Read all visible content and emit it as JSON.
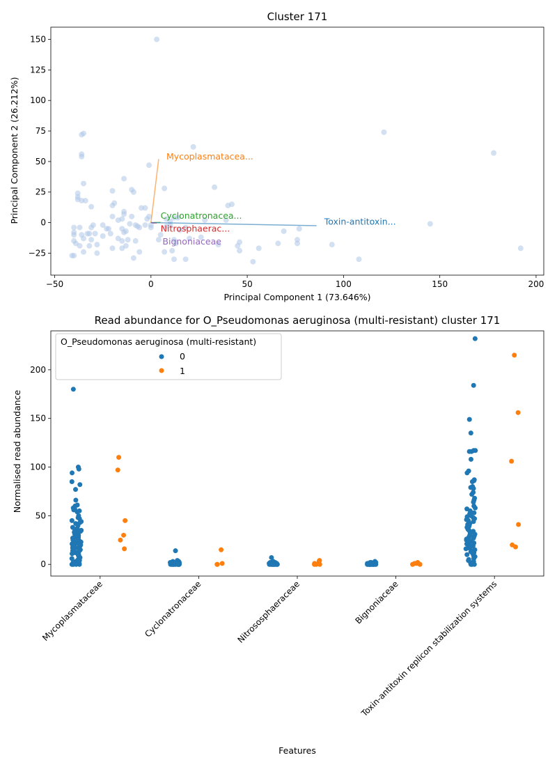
{
  "colors": {
    "blue": "#1f77b4",
    "orange": "#ff7f0e",
    "green": "#2ca02c",
    "red": "#d62728",
    "purple": "#9467bd",
    "pca_point": "#aec7e8"
  },
  "chart_data": [
    {
      "type": "scatter",
      "title": "Cluster 171",
      "xlabel": "Principal Component 1 (73.646%)",
      "ylabel": "Principal Component 2 (26.212%)",
      "xlim": [
        -52,
        204
      ],
      "ylim": [
        -43,
        160
      ],
      "xticks": [
        -50,
        0,
        50,
        100,
        150,
        200
      ],
      "yticks": [
        -25,
        0,
        25,
        50,
        75,
        100,
        125,
        150
      ],
      "grid": false,
      "points": [
        [
          3,
          150
        ],
        [
          121,
          74
        ],
        [
          178,
          57
        ],
        [
          22,
          62
        ],
        [
          -36,
          72
        ],
        [
          -35,
          73
        ],
        [
          -36,
          56
        ],
        [
          -36,
          54
        ],
        [
          -1,
          47
        ],
        [
          7,
          28
        ],
        [
          33,
          29
        ],
        [
          -35,
          32
        ],
        [
          -38,
          24
        ],
        [
          -38,
          21
        ],
        [
          -38,
          19
        ],
        [
          -36,
          18
        ],
        [
          -34,
          18
        ],
        [
          -20,
          26
        ],
        [
          -10,
          27
        ],
        [
          -9,
          25
        ],
        [
          -14,
          36
        ],
        [
          -19,
          16
        ],
        [
          -20,
          14
        ],
        [
          -31,
          13
        ],
        [
          -14,
          9
        ],
        [
          -14,
          7
        ],
        [
          -20,
          5
        ],
        [
          -10,
          5
        ],
        [
          -15,
          3
        ],
        [
          -17,
          2
        ],
        [
          -3,
          12
        ],
        [
          -5,
          12
        ],
        [
          -1,
          5
        ],
        [
          -2,
          3
        ],
        [
          8,
          3
        ],
        [
          10,
          1
        ],
        [
          12,
          4
        ],
        [
          14,
          4
        ],
        [
          40,
          14
        ],
        [
          42,
          15
        ],
        [
          39,
          2
        ],
        [
          28,
          2
        ],
        [
          -40,
          -4
        ],
        [
          -37,
          -4
        ],
        [
          -25,
          -2
        ],
        [
          -22,
          -5
        ],
        [
          -23,
          -5
        ],
        [
          -30,
          -2
        ],
        [
          -31,
          -4
        ],
        [
          -15,
          -5
        ],
        [
          -14,
          -8
        ],
        [
          -13,
          -7
        ],
        [
          -8,
          -2
        ],
        [
          -7,
          -3
        ],
        [
          -6,
          -4
        ],
        [
          0,
          -2
        ],
        [
          0,
          -4
        ],
        [
          5,
          -10
        ],
        [
          8,
          -3
        ],
        [
          10,
          -2
        ],
        [
          12,
          -14
        ],
        [
          13,
          -17
        ],
        [
          20,
          -13
        ],
        [
          -40,
          -8
        ],
        [
          -40,
          -10
        ],
        [
          -40,
          -15
        ],
        [
          -39,
          -17
        ],
        [
          -36,
          -10
        ],
        [
          -35,
          -13
        ],
        [
          -33,
          -9
        ],
        [
          -32,
          -9
        ],
        [
          -29,
          -9
        ],
        [
          -25,
          -11
        ],
        [
          -21,
          -9
        ],
        [
          -17,
          -13
        ],
        [
          -15,
          -15
        ],
        [
          -12,
          -14
        ],
        [
          -8,
          -15
        ],
        [
          -13,
          -19
        ],
        [
          -15,
          -21
        ],
        [
          -20,
          -21
        ],
        [
          -31,
          -14
        ],
        [
          -32,
          -19
        ],
        [
          -37,
          -19
        ],
        [
          -28,
          -18
        ],
        [
          -28,
          -25
        ],
        [
          -35,
          -24
        ],
        [
          -6,
          -24
        ],
        [
          -9,
          -29
        ],
        [
          7,
          -24
        ],
        [
          11,
          -23
        ],
        [
          12,
          -30
        ],
        [
          18,
          -30
        ],
        [
          -41,
          -27
        ],
        [
          -40,
          -27
        ],
        [
          35,
          -18
        ],
        [
          45,
          -19
        ],
        [
          46,
          -16
        ],
        [
          46,
          -23
        ],
        [
          53,
          -32
        ],
        [
          56,
          -21
        ],
        [
          66,
          -17
        ],
        [
          69,
          -7
        ],
        [
          77,
          -5
        ],
        [
          76,
          -14
        ],
        [
          76,
          -17
        ],
        [
          94,
          -18
        ],
        [
          108,
          -30
        ],
        [
          145,
          -1
        ],
        [
          192,
          -21
        ],
        [
          4,
          -14
        ],
        [
          26,
          -12
        ],
        [
          15,
          -6
        ],
        [
          18,
          -4
        ],
        [
          -3,
          -2
        ],
        [
          -11,
          -1
        ]
      ],
      "loadings": [
        {
          "label": "Mycoplasmatacea...",
          "dx": 4,
          "dy": 52,
          "label_x": 8,
          "label_y": 54,
          "color": "#ff7f0e"
        },
        {
          "label": "Cyclonatronacea...",
          "dx": 5,
          "dy": 0.3,
          "label_x": 5,
          "label_y": 5.5,
          "color": "#2ca02c"
        },
        {
          "label": "Nitrosphaerac...",
          "dx": 3,
          "dy": -0.4,
          "label_x": 5,
          "label_y": -5,
          "color": "#d62728"
        },
        {
          "label": "Toxin-antitoxin...",
          "dx": 86,
          "dy": -2.5,
          "label_x": 90,
          "label_y": 0.5,
          "color": "#1f77b4"
        },
        {
          "label": "Bignoniaceae",
          "dx": 2,
          "dy": -0.6,
          "label_x": 6,
          "label_y": -15.5,
          "color": "#9467bd"
        }
      ]
    },
    {
      "type": "strip",
      "title": "Read abundance for O_Pseudomonas aeruginosa (multi-resistant) cluster 171",
      "xlabel": "Features",
      "ylabel": "Normalised read abundance",
      "ylim": [
        -12,
        240
      ],
      "yticks": [
        0,
        50,
        100,
        150,
        200
      ],
      "grid": false,
      "legend": {
        "title": "O_Pseudomonas aeruginosa (multi-resistant)",
        "placement": "upper-left",
        "entries": [
          {
            "label": "0",
            "color": "#1f77b4"
          },
          {
            "label": "1",
            "color": "#ff7f0e"
          }
        ]
      },
      "categories": [
        "Mycoplasmataceae",
        "Cyclonatronaceae",
        "Nitrososphaeraceae",
        "Bignoniaceae",
        "Toxin-antitoxin replicon stabilization systems"
      ],
      "series": [
        {
          "name": "0",
          "values": [
            [
              180,
              100,
              98,
              94,
              85,
              82,
              77,
              66,
              61,
              60,
              58,
              57,
              56,
              55,
              54,
              50,
              48,
              47,
              45,
              44,
              43,
              42,
              40,
              38,
              37,
              36,
              35,
              35,
              34,
              34,
              33,
              33,
              32,
              32,
              31,
              31,
              30,
              30,
              29,
              29,
              28,
              28,
              27,
              27,
              26,
              26,
              25,
              25,
              24,
              24,
              23,
              23,
              22,
              22,
              21,
              21,
              20,
              20,
              19,
              19,
              18,
              18,
              17,
              17,
              16,
              16,
              15,
              15,
              14,
              14,
              13,
              13,
              12,
              12,
              11,
              10,
              10,
              9,
              8,
              7,
              6,
              5,
              5,
              4,
              3,
              2,
              2,
              1,
              1,
              0,
              0,
              0,
              0,
              0
            ],
            [
              14,
              4,
              3,
              3,
              2,
              2,
              2,
              1,
              1,
              1,
              1,
              1,
              1,
              1,
              1,
              0,
              0,
              0,
              0,
              0,
              0,
              0,
              0,
              0,
              0,
              0,
              0,
              0,
              0,
              0
            ],
            [
              7,
              3,
              2,
              2,
              2,
              2,
              1,
              1,
              1,
              1,
              1,
              1,
              1,
              1,
              0,
              0,
              0,
              0,
              0,
              0,
              0,
              0,
              0,
              0,
              0,
              0,
              0,
              0,
              0,
              0
            ],
            [
              3,
              2,
              2,
              2,
              1,
              1,
              1,
              1,
              1,
              1,
              1,
              0,
              0,
              0,
              0,
              0,
              0,
              0,
              0,
              0,
              0,
              0,
              0,
              0,
              0,
              0,
              0,
              0,
              0,
              0
            ],
            [
              232,
              184,
              149,
              135,
              117,
              117,
              116,
              116,
              108,
              96,
              94,
              87,
              86,
              85,
              80,
              79,
              78,
              74,
              72,
              68,
              66,
              64,
              60,
              58,
              57,
              55,
              53,
              52,
              51,
              50,
              49,
              48,
              47,
              46,
              45,
              44,
              42,
              41,
              40,
              39,
              38,
              37,
              36,
              35,
              34,
              33,
              32,
              31,
              30,
              29,
              28,
              27,
              26,
              25,
              24,
              23,
              22,
              21,
              20,
              19,
              18,
              17,
              16,
              15,
              14,
              13,
              12,
              11,
              10,
              9,
              8,
              7,
              6,
              5,
              4,
              3,
              2,
              1,
              0,
              0,
              0,
              0
            ]
          ]
        },
        {
          "name": "1",
          "values": [
            [
              110,
              97,
              45,
              30,
              25,
              16
            ],
            [
              15,
              1,
              0,
              0
            ],
            [
              4,
              3,
              1,
              0,
              0,
              0
            ],
            [
              2,
              1,
              1,
              0,
              0
            ],
            [
              215,
              156,
              106,
              41,
              20,
              18
            ]
          ]
        }
      ]
    }
  ]
}
